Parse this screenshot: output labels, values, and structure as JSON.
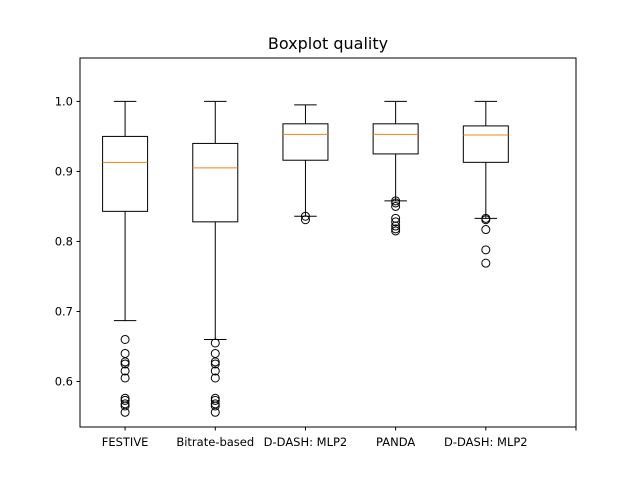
{
  "chart_data": {
    "type": "boxplot",
    "title": "Boxplot quality",
    "xlabel": "",
    "ylabel": "",
    "ylim": [
      0.535,
      1.062
    ],
    "yticks": [
      0.6,
      0.7,
      0.8,
      0.9,
      1.0
    ],
    "ytick_labels": [
      "0.6",
      "0.7",
      "0.8",
      "0.9",
      "1.0"
    ],
    "categories": [
      "FESTIVE",
      "Bitrate-based",
      "D-DASH: MLP2",
      "PANDA",
      "D-DASH: MLP2"
    ],
    "x_positions": [
      1,
      2,
      3,
      4,
      5
    ],
    "x_extra_ticks": [
      6
    ],
    "xlim": [
      0.5,
      6.0
    ],
    "grid": false,
    "colors": {
      "box": "#000000",
      "median": "#ff7f0e",
      "axis": "#000000",
      "background": "#ffffff"
    },
    "boxes": [
      {
        "whisker_low": 0.687,
        "q1": 0.843,
        "median": 0.913,
        "q3": 0.95,
        "whisker_high": 1.0,
        "outliers": [
          0.66,
          0.64,
          0.628,
          0.625,
          0.615,
          0.605,
          0.576,
          0.573,
          0.568,
          0.565,
          0.556
        ]
      },
      {
        "whisker_low": 0.66,
        "q1": 0.828,
        "median": 0.905,
        "q3": 0.94,
        "whisker_high": 1.0,
        "outliers": [
          0.655,
          0.64,
          0.628,
          0.625,
          0.615,
          0.605,
          0.576,
          0.573,
          0.568,
          0.565,
          0.556
        ]
      },
      {
        "whisker_low": 0.836,
        "q1": 0.916,
        "median": 0.953,
        "q3": 0.968,
        "whisker_high": 0.995,
        "outliers": [
          0.836,
          0.831
        ]
      },
      {
        "whisker_low": 0.858,
        "q1": 0.925,
        "median": 0.953,
        "q3": 0.968,
        "whisker_high": 1.0,
        "outliers": [
          0.858,
          0.855,
          0.85,
          0.833,
          0.828,
          0.822,
          0.818,
          0.815
        ]
      },
      {
        "whisker_low": 0.833,
        "q1": 0.913,
        "median": 0.952,
        "q3": 0.965,
        "whisker_high": 1.0,
        "outliers": [
          0.833,
          0.831,
          0.817,
          0.788,
          0.769
        ]
      }
    ]
  }
}
